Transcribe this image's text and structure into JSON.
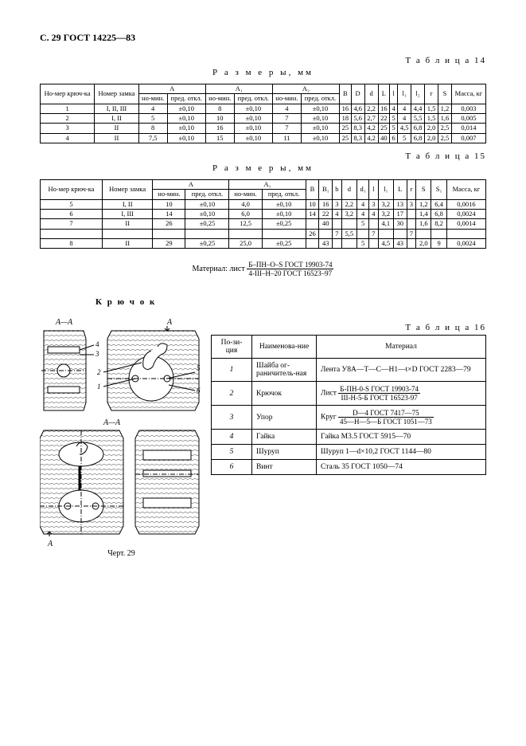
{
  "header": "С. 29 ГОСТ 14225—83",
  "table14_label": "Т а б л и ц а  14",
  "table15_label": "Т а б л и ц а  15",
  "table16_label": "Т а б л и ц а  16",
  "dim_caption": "Р а з м е р ы,   мм",
  "section_hook": "К р ю ч о к",
  "drawing_caption": "Черт. 29",
  "sect_label": "А—А",
  "arrow_A": "А",
  "t14": {
    "head": {
      "num_hook": "Но-мер крюч-ка",
      "num_lock": "Номер замка",
      "A": "A",
      "A1": "A₁",
      "A2": "A₂",
      "nomin": "но-мин.",
      "pred": "пред. откл.",
      "B": "B",
      "D": "D",
      "d": "d",
      "L": "L",
      "l": "l",
      "l1": "l₁",
      "l2": "l₂",
      "r": "r",
      "S": "S",
      "mass": "Масса, кг"
    },
    "rows": [
      {
        "n": "1",
        "lock": "I, II, III",
        "A": "4",
        "At": "±0,10",
        "A1": "8",
        "A1t": "±0,10",
        "A2": "4",
        "A2t": "±0,10",
        "B": "16",
        "D": "4,6",
        "d": "2,2",
        "L": "16",
        "l": "4",
        "l1": "4",
        "l2": "4,4",
        "r": "1,5",
        "S": "1,2",
        "m": "0,003"
      },
      {
        "n": "2",
        "lock": "I, II",
        "A": "5",
        "At": "±0,10",
        "A1": "10",
        "A1t": "±0,10",
        "A2": "7",
        "A2t": "±0,10",
        "B": "18",
        "D": "5,6",
        "d": "2,7",
        "L": "22",
        "l": "5",
        "l1": "4",
        "l2": "5,5",
        "r": "1,5",
        "S": "1,6",
        "m": "0,005"
      },
      {
        "n": "3",
        "lock": "II",
        "A": "8",
        "At": "±0,10",
        "A1": "16",
        "A1t": "±0,10",
        "A2": "7",
        "A2t": "±0,10",
        "B": "25",
        "D": "8,3",
        "d": "4,2",
        "L": "25",
        "l": "5",
        "l1": "4,5",
        "l2": "6,8",
        "r": "2,0",
        "S": "2,5",
        "m": "0,014"
      },
      {
        "n": "4",
        "lock": "II",
        "A": "7,5",
        "At": "±0,10",
        "A1": "15",
        "A1t": "±0,10",
        "A2": "11",
        "A2t": "±0,10",
        "B": "25",
        "D": "8,3",
        "d": "4,2",
        "L": "40",
        "l": "6",
        "l1": "5",
        "l2": "6,8",
        "r": "2,0",
        "S": "2,5",
        "m": "0,007"
      }
    ]
  },
  "t15": {
    "head": {
      "num_hook": "Но-мер крюч-ка",
      "num_lock": "Номер замка",
      "A": "A",
      "A1": "A₁",
      "nomin": "но-мин.",
      "pred": "пред. откл.",
      "B": "B",
      "B1": "B₁",
      "b": "b",
      "d": "d",
      "d1": "d₁",
      "l": "l",
      "l1": "l₁",
      "L": "L",
      "r": "r",
      "S": "S",
      "S1": "S₁",
      "mass": "Масса, кг"
    },
    "rows": [
      {
        "n": "5",
        "lock": "I, II",
        "A": "10",
        "At": "±0,10",
        "A1": "4,0",
        "A1t": "±0,10",
        "B": "10",
        "B1": "16",
        "b": "3",
        "d": "2,2",
        "d1": "4",
        "l": "3",
        "l1": "3,2",
        "L": "13",
        "r": "3",
        "S": "1,2",
        "S1": "6,4",
        "m": "0,0016"
      },
      {
        "n": "6",
        "lock": "I, III",
        "A": "14",
        "At": "±0,10",
        "A1": "6,0",
        "A1t": "±0,10",
        "B": "14",
        "B1": "22",
        "b": "4",
        "d": "3,2",
        "d1": "4",
        "l": "4",
        "l1": "3,2",
        "L": "17",
        "r": "",
        "S": "1,4",
        "S1": "6,8",
        "m": "0,0024"
      },
      {
        "n": "7",
        "lock": "II",
        "A": "26",
        "At": "±0,25",
        "A1": "12,5",
        "A1t": "±0,25",
        "B": "",
        "B1": "40",
        "b": "",
        "d": "",
        "d1": "5",
        "l": "",
        "l1": "4,1",
        "L": "30",
        "r": "",
        "S": "1,6",
        "S1": "8,2",
        "m": "0,0014"
      },
      {
        "n": "",
        "lock": "",
        "A": "",
        "At": "",
        "A1": "",
        "A1t": "",
        "B": "26",
        "B1": "",
        "b": "7",
        "d": "5,5",
        "d1": "",
        "l": "7",
        "l1": "",
        "L": "",
        "r": "7",
        "S": "",
        "S1": "",
        "m": ""
      },
      {
        "n": "8",
        "lock": "II",
        "A": "29",
        "At": "±0,25",
        "A1": "25,0",
        "A1t": "±0,25",
        "B": "",
        "B1": "43",
        "b": "",
        "d": "",
        "d1": "5",
        "l": "",
        "l1": "4,5",
        "L": "43",
        "r": "",
        "S": "2,0",
        "S1": "9",
        "m": "0,0024"
      }
    ]
  },
  "material_prefix": "Материал: лист",
  "material_top": "Б–ПН–О–S  ГОСТ 19903-74",
  "material_bot": "4-III–Н–20  ГОСТ  16523–97",
  "t16": {
    "head": {
      "pos": "По-зи-ция",
      "name": "Наименова-ние",
      "mat": "Материал"
    },
    "rows": [
      {
        "p": "1",
        "n": "Шайба ог-раничитель-ная",
        "mat_plain": "Лента У8А—Т—С—Н1—t×D ГОСТ 2283—79"
      },
      {
        "p": "2",
        "n": "Крючок",
        "mat_prefix": "Лист",
        "mat_top": "Б-ПН-0-S ГОСТ 19903-74",
        "mat_bot": "III-Н-5-Б ГОСТ 16523-97"
      },
      {
        "p": "3",
        "n": "Упор",
        "mat_prefix": "Круг",
        "mat_top": "D—4 ГОСТ 7417—75",
        "mat_bot": "45—Н—5—Б ГОСТ 1051—73"
      },
      {
        "p": "4",
        "n": "Гайка",
        "mat_plain": "Гайка М3.5 ГОСТ 5915—70"
      },
      {
        "p": "5",
        "n": "Шуруп",
        "mat_plain": "Шуруп 1—d×10,2 ГОСТ 1144—80"
      },
      {
        "p": "6",
        "n": "Винт",
        "mat_plain": "Сталь 35 ГОСТ 1050—74"
      }
    ]
  },
  "leader_numbers": [
    "1",
    "2",
    "3",
    "4",
    "5",
    "6"
  ]
}
